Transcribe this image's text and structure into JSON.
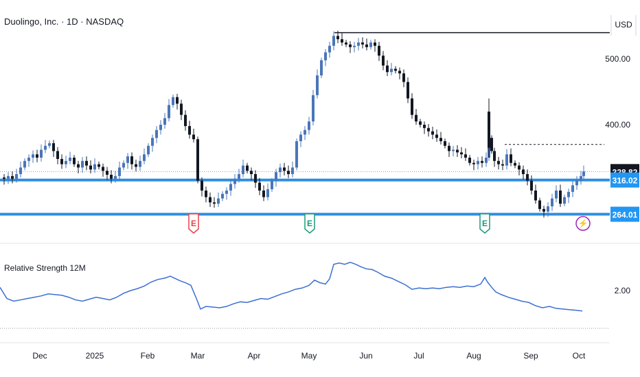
{
  "header": {
    "title": "Duolingo, Inc. · 1D · NASDAQ",
    "currency": "USD"
  },
  "indicator": {
    "title": "Relative Strength 12M",
    "tick_label": "2.00"
  },
  "colors": {
    "candle_up": "#4a76b8",
    "candle_down": "#131722",
    "level_line": "#2d8de0",
    "rs_line": "#3a6fd1",
    "earnings_red": "#e8424a",
    "earnings_green": "#1a9a7a",
    "event_purple": "#9c27b0",
    "last_price_bg": "#131722",
    "level_tag_bg": "#2196f3"
  },
  "chart_data": {
    "type": "candlestick",
    "price_axis": {
      "ticks": [
        500,
        400
      ],
      "tick_labels": [
        "500.00",
        "400.00"
      ]
    },
    "time_axis": {
      "labels": [
        "Dec",
        "2025",
        "Feb",
        "Mar",
        "Apr",
        "May",
        "Jun",
        "Jul",
        "Aug",
        "Sep",
        "Oct"
      ]
    },
    "last_price": 328.82,
    "last_price_label": "328.82",
    "levels": [
      {
        "value": 316.02,
        "label": "316.02"
      },
      {
        "value": 264.01,
        "label": "264.01"
      }
    ],
    "high_marker": 540,
    "resistance_dotted": 370,
    "events": [
      {
        "type": "earnings",
        "label": "E",
        "color": "red"
      },
      {
        "type": "earnings",
        "label": "E",
        "color": "green"
      },
      {
        "type": "earnings",
        "label": "E",
        "color": "green"
      },
      {
        "type": "event",
        "label": "⚡",
        "color": "purple"
      }
    ],
    "close_path": [
      [
        0,
        320
      ],
      [
        6,
        318
      ],
      [
        12,
        322
      ],
      [
        18,
        318
      ],
      [
        24,
        325
      ],
      [
        30,
        335
      ],
      [
        36,
        345
      ],
      [
        42,
        350
      ],
      [
        48,
        355
      ],
      [
        54,
        350
      ],
      [
        60,
        362
      ],
      [
        66,
        368
      ],
      [
        72,
        372
      ],
      [
        78,
        360
      ],
      [
        84,
        348
      ],
      [
        90,
        340
      ],
      [
        96,
        345
      ],
      [
        102,
        350
      ],
      [
        108,
        340
      ],
      [
        114,
        335
      ],
      [
        120,
        345
      ],
      [
        126,
        338
      ],
      [
        132,
        332
      ],
      [
        138,
        340
      ],
      [
        144,
        336
      ],
      [
        150,
        330
      ],
      [
        156,
        324
      ],
      [
        162,
        318
      ],
      [
        168,
        322
      ],
      [
        174,
        335
      ],
      [
        180,
        342
      ],
      [
        186,
        352
      ],
      [
        192,
        340
      ],
      [
        198,
        336
      ],
      [
        204,
        345
      ],
      [
        210,
        355
      ],
      [
        216,
        368
      ],
      [
        222,
        380
      ],
      [
        228,
        392
      ],
      [
        234,
        400
      ],
      [
        240,
        410
      ],
      [
        246,
        430
      ],
      [
        252,
        442
      ],
      [
        258,
        432
      ],
      [
        264,
        415
      ],
      [
        270,
        398
      ],
      [
        276,
        385
      ],
      [
        282,
        378
      ],
      [
        288,
        315
      ],
      [
        294,
        300
      ],
      [
        300,
        290
      ],
      [
        306,
        282
      ],
      [
        312,
        280
      ],
      [
        318,
        288
      ],
      [
        324,
        295
      ],
      [
        330,
        300
      ],
      [
        336,
        310
      ],
      [
        342,
        318
      ],
      [
        348,
        325
      ],
      [
        354,
        338
      ],
      [
        360,
        330
      ],
      [
        366,
        325
      ],
      [
        372,
        312
      ],
      [
        378,
        300
      ],
      [
        384,
        290
      ],
      [
        390,
        302
      ],
      [
        396,
        315
      ],
      [
        402,
        328
      ],
      [
        408,
        335
      ],
      [
        414,
        330
      ],
      [
        420,
        325
      ],
      [
        426,
        335
      ],
      [
        432,
        375
      ],
      [
        438,
        385
      ],
      [
        444,
        392
      ],
      [
        450,
        405
      ],
      [
        456,
        445
      ],
      [
        462,
        475
      ],
      [
        468,
        498
      ],
      [
        474,
        510
      ],
      [
        480,
        520
      ],
      [
        486,
        535
      ],
      [
        492,
        530
      ],
      [
        498,
        525
      ],
      [
        504,
        522
      ],
      [
        510,
        518
      ],
      [
        516,
        520
      ],
      [
        522,
        525
      ],
      [
        528,
        522
      ],
      [
        534,
        518
      ],
      [
        540,
        525
      ],
      [
        546,
        520
      ],
      [
        552,
        505
      ],
      [
        558,
        490
      ],
      [
        564,
        480
      ],
      [
        570,
        485
      ],
      [
        576,
        482
      ],
      [
        582,
        478
      ],
      [
        588,
        465
      ],
      [
        594,
        440
      ],
      [
        600,
        415
      ],
      [
        606,
        405
      ],
      [
        612,
        400
      ],
      [
        618,
        395
      ],
      [
        624,
        390
      ],
      [
        630,
        385
      ],
      [
        636,
        380
      ],
      [
        642,
        375
      ],
      [
        648,
        368
      ],
      [
        654,
        360
      ],
      [
        660,
        362
      ],
      [
        666,
        358
      ],
      [
        672,
        355
      ],
      [
        678,
        350
      ],
      [
        684,
        342
      ],
      [
        690,
        340
      ],
      [
        696,
        345
      ],
      [
        702,
        342
      ],
      [
        708,
        350
      ],
      [
        712,
        380
      ],
      [
        716,
        360
      ],
      [
        720,
        345
      ],
      [
        726,
        340
      ],
      [
        732,
        338
      ],
      [
        738,
        355
      ],
      [
        744,
        342
      ],
      [
        750,
        338
      ],
      [
        756,
        332
      ],
      [
        762,
        325
      ],
      [
        768,
        315
      ],
      [
        774,
        300
      ],
      [
        780,
        285
      ],
      [
        786,
        272
      ],
      [
        792,
        268
      ],
      [
        798,
        276
      ],
      [
        804,
        288
      ],
      [
        810,
        300
      ],
      [
        816,
        280
      ],
      [
        822,
        290
      ],
      [
        828,
        298
      ],
      [
        834,
        308
      ],
      [
        840,
        315
      ],
      [
        846,
        322
      ],
      [
        850,
        329
      ]
    ],
    "rs_path": [
      [
        0,
        2.05
      ],
      [
        10,
        1.88
      ],
      [
        20,
        1.84
      ],
      [
        30,
        1.86
      ],
      [
        40,
        1.88
      ],
      [
        50,
        1.9
      ],
      [
        60,
        1.92
      ],
      [
        70,
        1.95
      ],
      [
        80,
        1.94
      ],
      [
        90,
        1.93
      ],
      [
        100,
        1.9
      ],
      [
        110,
        1.86
      ],
      [
        120,
        1.84
      ],
      [
        130,
        1.87
      ],
      [
        140,
        1.9
      ],
      [
        150,
        1.88
      ],
      [
        160,
        1.86
      ],
      [
        170,
        1.9
      ],
      [
        180,
        1.96
      ],
      [
        190,
        2.0
      ],
      [
        200,
        2.03
      ],
      [
        210,
        2.07
      ],
      [
        220,
        2.13
      ],
      [
        230,
        2.17
      ],
      [
        240,
        2.19
      ],
      [
        248,
        2.22
      ],
      [
        256,
        2.18
      ],
      [
        262,
        2.15
      ],
      [
        270,
        2.12
      ],
      [
        278,
        2.08
      ],
      [
        286,
        1.88
      ],
      [
        292,
        1.72
      ],
      [
        300,
        1.76
      ],
      [
        310,
        1.75
      ],
      [
        320,
        1.74
      ],
      [
        330,
        1.76
      ],
      [
        340,
        1.8
      ],
      [
        350,
        1.83
      ],
      [
        360,
        1.82
      ],
      [
        370,
        1.85
      ],
      [
        380,
        1.88
      ],
      [
        390,
        1.87
      ],
      [
        400,
        1.91
      ],
      [
        410,
        1.95
      ],
      [
        420,
        1.98
      ],
      [
        430,
        2.02
      ],
      [
        440,
        2.04
      ],
      [
        450,
        2.08
      ],
      [
        458,
        2.16
      ],
      [
        466,
        2.12
      ],
      [
        474,
        2.1
      ],
      [
        480,
        2.18
      ],
      [
        486,
        2.4
      ],
      [
        494,
        2.42
      ],
      [
        502,
        2.4
      ],
      [
        510,
        2.43
      ],
      [
        518,
        2.4
      ],
      [
        526,
        2.36
      ],
      [
        534,
        2.33
      ],
      [
        542,
        2.32
      ],
      [
        550,
        2.28
      ],
      [
        560,
        2.22
      ],
      [
        570,
        2.19
      ],
      [
        580,
        2.14
      ],
      [
        590,
        2.09
      ],
      [
        600,
        2.02
      ],
      [
        610,
        2.04
      ],
      [
        620,
        2.03
      ],
      [
        630,
        2.04
      ],
      [
        640,
        2.03
      ],
      [
        650,
        2.05
      ],
      [
        660,
        2.06
      ],
      [
        670,
        2.05
      ],
      [
        680,
        2.07
      ],
      [
        690,
        2.06
      ],
      [
        700,
        2.1
      ],
      [
        706,
        2.2
      ],
      [
        710,
        2.13
      ],
      [
        716,
        2.05
      ],
      [
        722,
        1.98
      ],
      [
        730,
        1.94
      ],
      [
        740,
        1.9
      ],
      [
        750,
        1.87
      ],
      [
        760,
        1.84
      ],
      [
        770,
        1.82
      ],
      [
        780,
        1.77
      ],
      [
        790,
        1.74
      ],
      [
        800,
        1.76
      ],
      [
        810,
        1.73
      ],
      [
        820,
        1.72
      ],
      [
        830,
        1.71
      ],
      [
        840,
        1.7
      ],
      [
        848,
        1.69
      ]
    ]
  }
}
